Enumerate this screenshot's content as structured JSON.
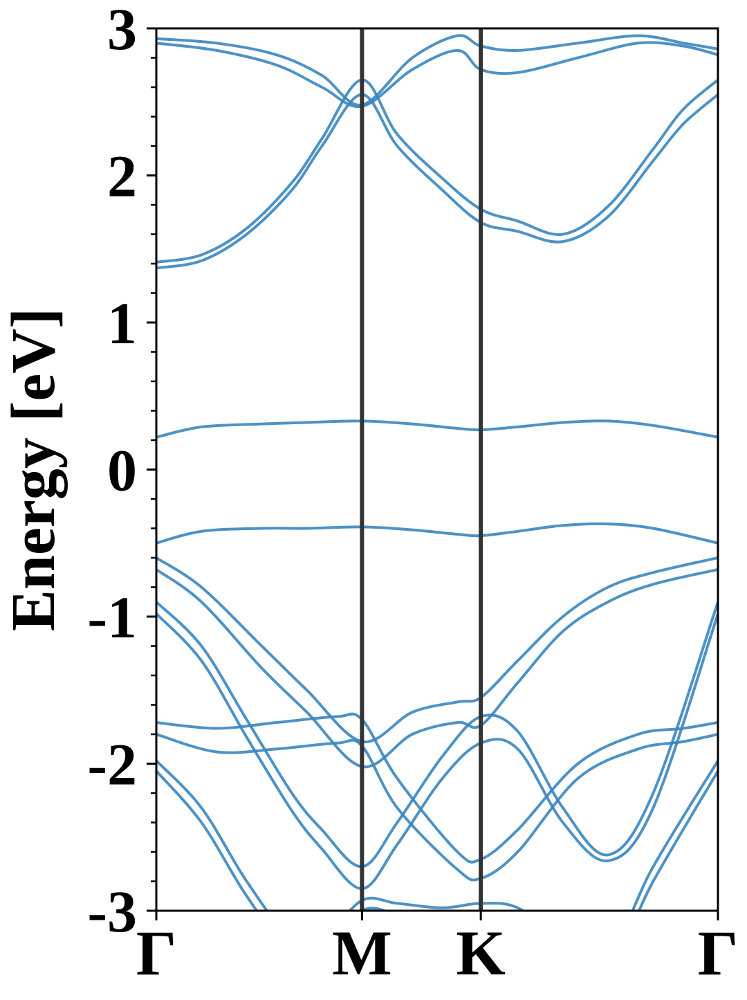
{
  "chart_data": {
    "type": "line",
    "title": "",
    "xlabel": "",
    "ylabel": "Energy [eV]",
    "ylim": [
      -3,
      3
    ],
    "yticks": [
      -3,
      -2,
      -1,
      0,
      1,
      2,
      3
    ],
    "ytick_labels": [
      "-3",
      "-2",
      "-1",
      "0",
      "1",
      "2",
      "3"
    ],
    "yminor_step": 0.2,
    "xlim": [
      0,
      3.73
    ],
    "kpoints": [
      {
        "label": "Γ",
        "x": 0
      },
      {
        "label": "M",
        "x": 1.366
      },
      {
        "label": "K",
        "x": 2.155
      },
      {
        "label": "Γ",
        "x": 3.73
      }
    ],
    "grid": false,
    "colors": {
      "bands": "#3a86c0",
      "kpath_lines": "#333333",
      "axes": "#000000"
    },
    "series": [
      {
        "x": [
          0,
          0.3,
          0.7,
          1.0,
          1.366,
          1.7,
          2.0,
          2.155,
          2.4,
          2.7,
          3.0,
          3.3,
          3.73
        ],
        "values": [
          0.22,
          0.29,
          0.31,
          0.32,
          0.33,
          0.31,
          0.28,
          0.27,
          0.29,
          0.32,
          0.33,
          0.3,
          0.22
        ]
      },
      {
        "x": [
          0,
          0.3,
          0.7,
          1.0,
          1.366,
          1.7,
          2.0,
          2.155,
          2.4,
          2.7,
          3.0,
          3.3,
          3.73
        ],
        "values": [
          -0.5,
          -0.42,
          -0.4,
          -0.4,
          -0.39,
          -0.41,
          -0.44,
          -0.45,
          -0.42,
          -0.38,
          -0.37,
          -0.4,
          -0.5
        ]
      },
      {
        "x": [
          0,
          0.3,
          0.6,
          0.9,
          1.1,
          1.366,
          1.6,
          1.9,
          2.155,
          2.4,
          2.7,
          3.0,
          3.3,
          3.5,
          3.73
        ],
        "values": [
          1.37,
          1.42,
          1.6,
          1.9,
          2.2,
          2.55,
          2.2,
          1.9,
          1.68,
          1.62,
          1.55,
          1.72,
          2.1,
          2.35,
          2.55
        ]
      },
      {
        "x": [
          0,
          0.3,
          0.6,
          0.9,
          1.1,
          1.366,
          1.6,
          1.9,
          2.155,
          2.4,
          2.7,
          3.0,
          3.3,
          3.5,
          3.73
        ],
        "values": [
          1.41,
          1.46,
          1.64,
          1.95,
          2.25,
          2.65,
          2.28,
          1.98,
          1.77,
          1.69,
          1.6,
          1.79,
          2.18,
          2.45,
          2.65
        ]
      },
      {
        "x": [
          0,
          0.4,
          0.8,
          1.1,
          1.366,
          1.7,
          2.0,
          2.155,
          2.4,
          2.8,
          3.2,
          3.5,
          3.73
        ],
        "values": [
          2.9,
          2.85,
          2.75,
          2.6,
          2.47,
          2.72,
          2.85,
          2.72,
          2.7,
          2.8,
          2.9,
          2.88,
          2.82
        ]
      },
      {
        "x": [
          0,
          0.4,
          0.8,
          1.1,
          1.366,
          1.7,
          2.0,
          2.155,
          2.4,
          2.8,
          3.2,
          3.5,
          3.73
        ],
        "values": [
          2.93,
          2.9,
          2.82,
          2.68,
          2.48,
          2.8,
          2.95,
          2.88,
          2.85,
          2.9,
          2.95,
          2.9,
          2.86
        ]
      },
      {
        "x": [
          0,
          0.3,
          0.7,
          1.0,
          1.366,
          1.7,
          2.0,
          2.155,
          2.4,
          2.7,
          3.0,
          3.3,
          3.73
        ],
        "values": [
          -0.6,
          -0.8,
          -1.2,
          -1.5,
          -1.85,
          -1.65,
          -1.58,
          -1.55,
          -1.3,
          -1.0,
          -0.8,
          -0.7,
          -0.6
        ]
      },
      {
        "x": [
          0,
          0.3,
          0.7,
          1.0,
          1.366,
          1.7,
          2.0,
          2.155,
          2.4,
          2.7,
          3.0,
          3.3,
          3.73
        ],
        "values": [
          -0.68,
          -0.9,
          -1.35,
          -1.65,
          -2.02,
          -1.8,
          -1.72,
          -1.74,
          -1.45,
          -1.1,
          -0.9,
          -0.78,
          -0.68
        ]
      },
      {
        "x": [
          0,
          0.3,
          0.6,
          0.9,
          1.1,
          1.366,
          1.6,
          1.9,
          2.155,
          2.4,
          2.7,
          3.0,
          3.3,
          3.73
        ],
        "values": [
          -0.9,
          -1.2,
          -1.7,
          -2.2,
          -2.45,
          -2.7,
          -2.4,
          -1.95,
          -1.68,
          -1.78,
          -2.3,
          -2.62,
          -2.2,
          -0.9
        ]
      },
      {
        "x": [
          0,
          0.3,
          0.6,
          0.9,
          1.1,
          1.366,
          1.6,
          1.9,
          2.155,
          2.4,
          2.7,
          3.0,
          3.3,
          3.73
        ],
        "values": [
          -0.98,
          -1.3,
          -1.82,
          -2.32,
          -2.58,
          -2.85,
          -2.55,
          -2.1,
          -1.86,
          -1.9,
          -2.4,
          -2.66,
          -2.3,
          -0.98
        ]
      },
      {
        "x": [
          0,
          0.4,
          0.8,
          1.2,
          1.366,
          1.6,
          2.0,
          2.155,
          2.4,
          2.8,
          3.2,
          3.5,
          3.73
        ],
        "values": [
          -1.72,
          -1.76,
          -1.72,
          -1.68,
          -1.7,
          -2.1,
          -2.6,
          -2.65,
          -2.45,
          -2.0,
          -1.8,
          -1.76,
          -1.72
        ]
      },
      {
        "x": [
          0,
          0.4,
          0.8,
          1.2,
          1.366,
          1.6,
          2.0,
          2.155,
          2.4,
          2.8,
          3.2,
          3.5,
          3.73
        ],
        "values": [
          -1.8,
          -1.92,
          -1.9,
          -1.86,
          -1.88,
          -2.3,
          -2.72,
          -2.78,
          -2.6,
          -2.1,
          -1.9,
          -1.85,
          -1.8
        ]
      },
      {
        "x": [
          0,
          0.3,
          0.6,
          0.9,
          1.1,
          1.366,
          1.6,
          1.9,
          2.155,
          2.4,
          2.7,
          3.0,
          3.3,
          3.73
        ],
        "values": [
          -1.98,
          -2.3,
          -2.8,
          -3.2,
          -3.2,
          -2.93,
          -2.95,
          -2.98,
          -2.95,
          -2.98,
          -3.2,
          -3.3,
          -2.7,
          -1.98
        ]
      },
      {
        "x": [
          0,
          0.3,
          0.6,
          0.9,
          1.1,
          1.366,
          1.6,
          1.9,
          2.155,
          2.4,
          2.7,
          3.0,
          3.3,
          3.73
        ],
        "values": [
          -2.05,
          -2.4,
          -2.9,
          -3.3,
          -3.3,
          -3.0,
          -3.02,
          -3.05,
          -3.02,
          -3.05,
          -3.3,
          -3.4,
          -2.8,
          -2.05
        ]
      }
    ]
  }
}
